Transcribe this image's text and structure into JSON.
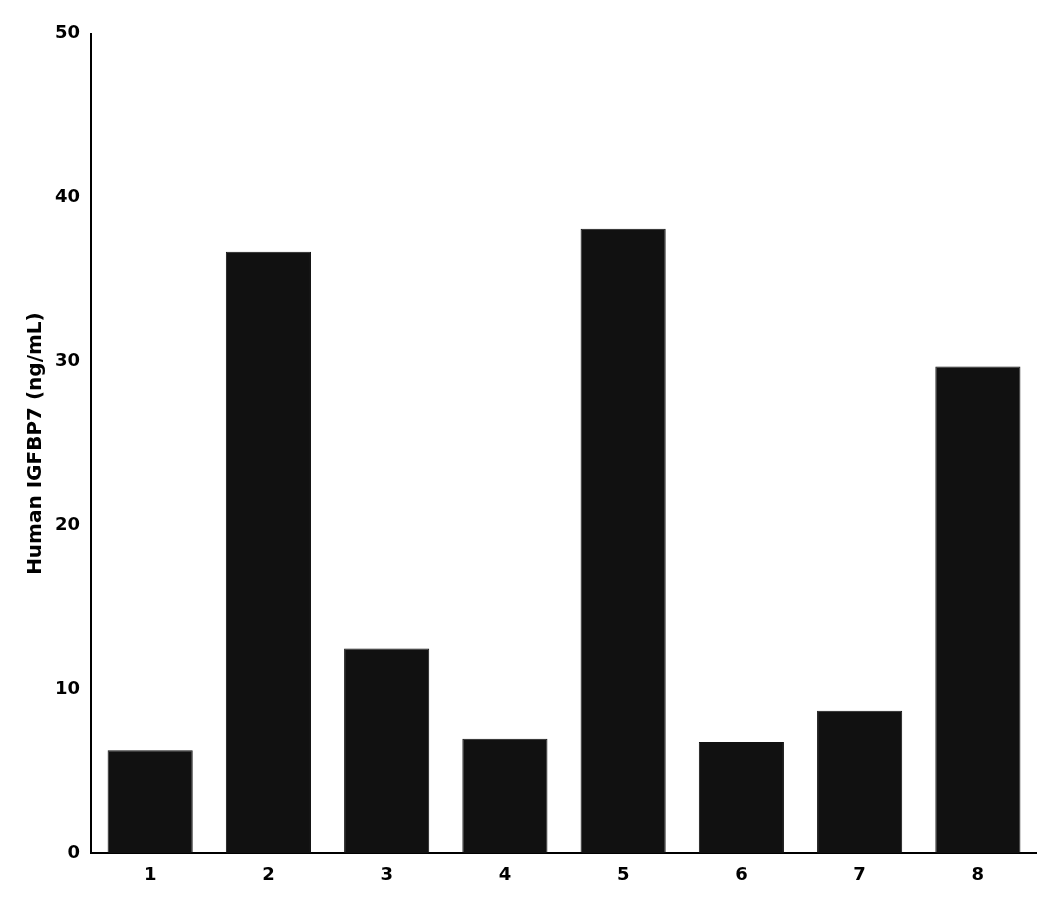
{
  "chart_data": {
    "type": "bar",
    "categories": [
      "1",
      "2",
      "3",
      "4",
      "5",
      "6",
      "7",
      "8"
    ],
    "values": [
      6.3,
      36.7,
      12.5,
      7.0,
      38.1,
      6.8,
      8.7,
      29.7
    ],
    "color": "#111111",
    "ylabel": "Human IGFBP7 (ng/mL)",
    "ylim": [
      0,
      50
    ],
    "yticks": [
      0,
      10,
      20,
      30,
      40,
      50
    ],
    "grid": false
  }
}
